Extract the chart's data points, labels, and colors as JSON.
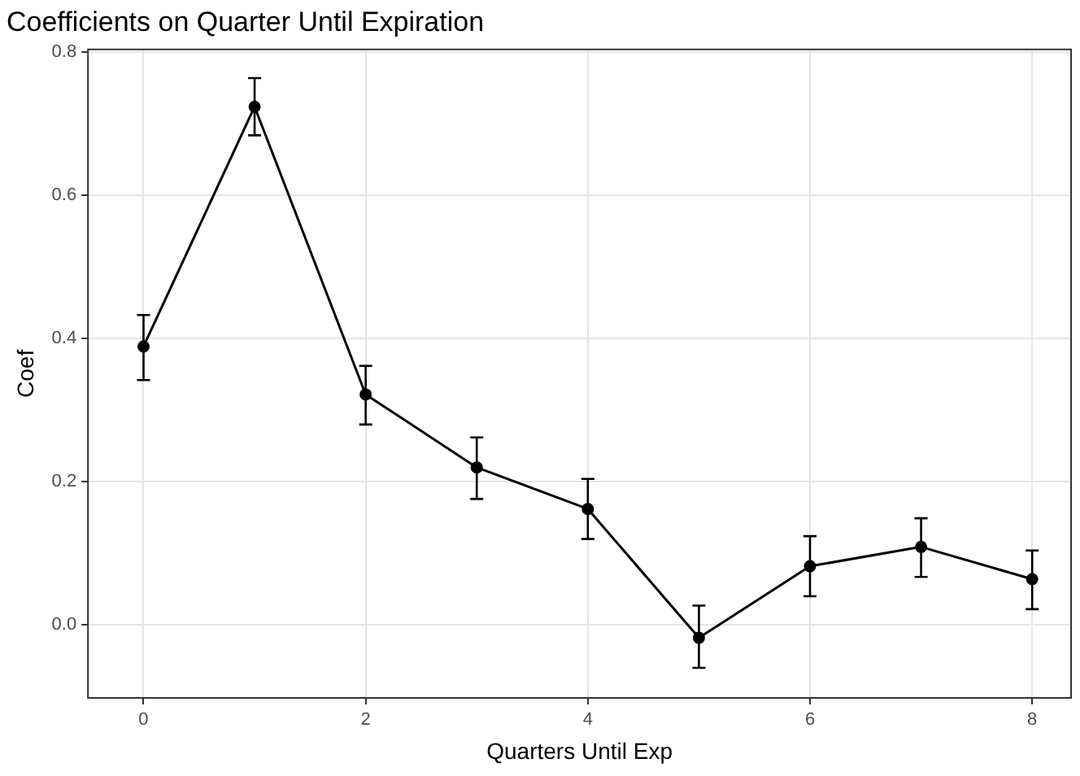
{
  "chart_data": {
    "type": "line",
    "title": "Coefficients on Quarter Until Expiration",
    "xlabel": "Quarters Until Exp",
    "ylabel": "Coef",
    "x": [
      0,
      1,
      2,
      3,
      4,
      5,
      6,
      7,
      8
    ],
    "series": [
      {
        "color": "#000000",
        "values": [
          0.389,
          0.724,
          0.322,
          0.22,
          0.162,
          -0.018,
          0.082,
          0.109,
          0.064
        ],
        "errors": [
          [
            0.342,
            0.433
          ],
          [
            0.684,
            0.764
          ],
          [
            0.28,
            0.362
          ],
          [
            0.176,
            0.262
          ],
          [
            0.12,
            0.204
          ],
          [
            -0.06,
            0.027
          ],
          [
            0.04,
            0.124
          ],
          [
            0.067,
            0.149
          ],
          [
            0.022,
            0.104
          ]
        ]
      }
    ],
    "xlim": [
      -0.5,
      8.35
    ],
    "xticks": [
      0,
      2,
      4,
      6,
      8
    ],
    "ylim": [
      -0.102,
      0.804
    ],
    "yticks": [
      {
        "value": 0,
        "label": "0.0"
      },
      {
        "value": 0.2,
        "label": "0.2"
      },
      {
        "value": 0.4,
        "label": "0.4"
      },
      {
        "value": 0.6,
        "label": "0.6"
      },
      {
        "value": 0.8,
        "label": "0.8"
      }
    ],
    "grid": true,
    "legend": false,
    "marker": "circle",
    "line_style": "solid"
  }
}
